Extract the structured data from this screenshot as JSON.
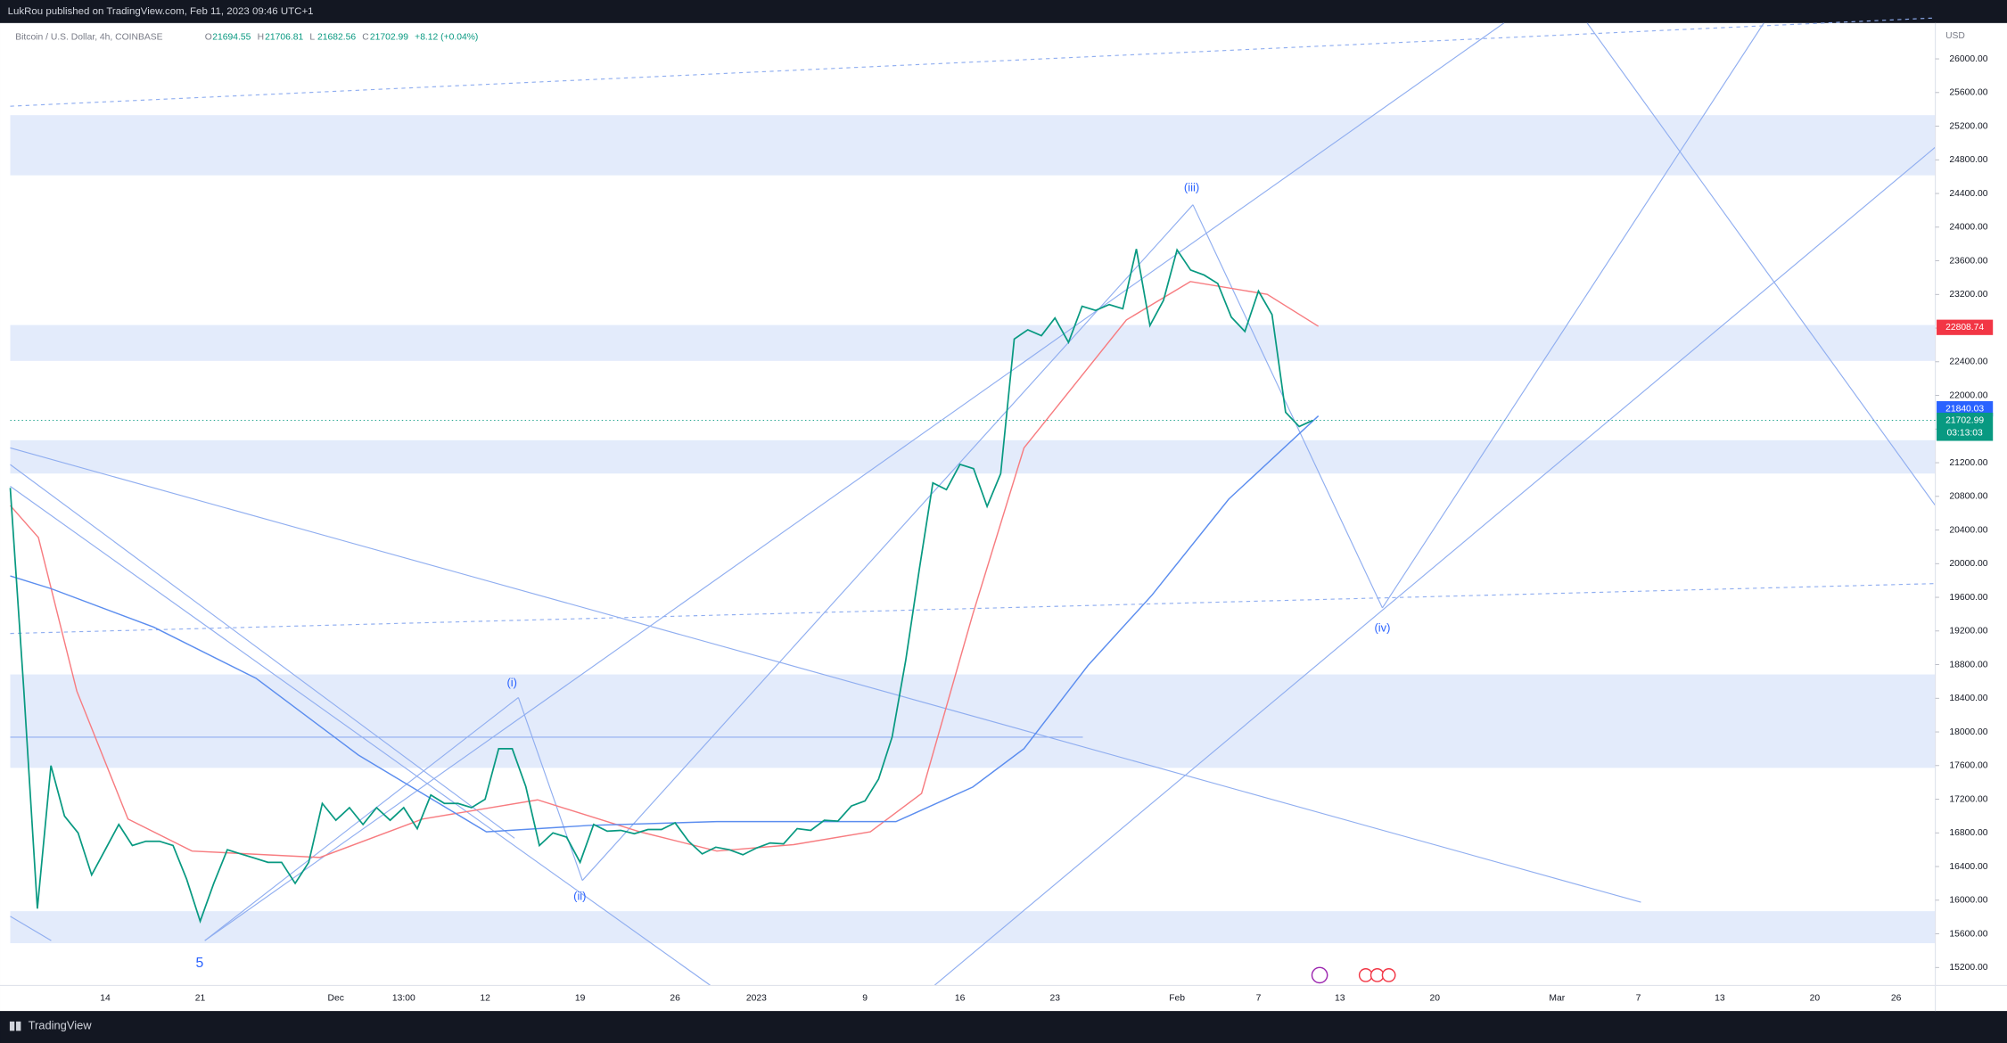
{
  "header": {
    "publisher": "LukRou published on TradingView.com, Feb 11, 2023 09:46 UTC+1",
    "footer": "TradingView"
  },
  "chart_data": {
    "type": "line",
    "symbol": "Bitcoin / U.S. Dollar, 4h, COINBASE",
    "ohlc": [
      {
        "label": "O",
        "value": 21694.55
      },
      {
        "label": "H",
        "value": 21706.81
      },
      {
        "label": "L",
        "value": 21682.56
      },
      {
        "label": "C",
        "value": 21702.99
      }
    ],
    "change": "+8.12 (+0.04%)",
    "currency": "USD",
    "categories": [
      null,
      null,
      null,
      null,
      null,
      null,
      null,
      "14",
      null,
      null,
      null,
      null,
      null,
      null,
      "21",
      null,
      null,
      null,
      null,
      null,
      null,
      null,
      null,
      null,
      "Dec",
      null,
      null,
      null,
      null,
      "13:00",
      null,
      null,
      null,
      null,
      null,
      "12",
      null,
      null,
      null,
      null,
      null,
      null,
      "19",
      null,
      null,
      null,
      null,
      null,
      null,
      "26",
      null,
      null,
      null,
      null,
      null,
      "2023",
      null,
      null,
      null,
      null,
      null,
      null,
      null,
      "9",
      null,
      null,
      null,
      null,
      null,
      null,
      "16",
      null,
      null,
      null,
      null,
      null,
      null,
      "23",
      null,
      null,
      null,
      null,
      null,
      null,
      null,
      null,
      "Feb",
      null,
      null,
      null,
      null,
      null,
      "7",
      null,
      null,
      null,
      null,
      null,
      "13",
      null,
      null,
      null,
      null,
      null,
      null,
      "20",
      null,
      null,
      null,
      null,
      null,
      null,
      null,
      null,
      "Mar",
      null,
      null,
      null,
      null,
      null,
      "7",
      null,
      null,
      null,
      null,
      null,
      "13",
      null,
      null,
      null,
      null,
      null,
      null,
      "20",
      null,
      null,
      null,
      null,
      null,
      "26",
      null,
      null
    ],
    "series": [
      {
        "name": "BTCUSD",
        "color": "#089981",
        "values": [
          20900,
          18500,
          15900,
          17600,
          17000,
          16800,
          16300,
          16600,
          16900,
          16650,
          16700,
          16700,
          16650,
          16250,
          15750,
          16200,
          16600,
          16550,
          16500,
          16450,
          16450,
          16200,
          16450,
          17150,
          16950,
          17100,
          16900,
          17100,
          16950,
          17100,
          16850,
          17250,
          17150,
          17150,
          17100,
          17200,
          17800,
          17800,
          17350,
          16650,
          16800,
          16750,
          16450,
          16900,
          16820,
          16830,
          16790,
          16840,
          16840,
          16920,
          16700,
          16550,
          16630,
          16600,
          16540,
          16620,
          16680,
          16670,
          16850,
          16830,
          16950,
          16940,
          17120,
          17180,
          17440,
          17940,
          18850,
          19930,
          20960,
          20880,
          21180,
          21130,
          20680,
          21070,
          22670,
          22780,
          22710,
          22920,
          22630,
          23060,
          23010,
          23080,
          23030,
          23740,
          22830,
          23130,
          23730,
          23490,
          23430,
          23330,
          22930,
          22760,
          23240,
          22960,
          21800,
          21630,
          21703,
          null,
          null,
          null,
          null,
          null,
          null,
          null,
          null,
          null,
          null,
          null,
          null,
          null,
          null,
          null,
          null,
          null,
          null,
          null,
          null,
          null,
          null,
          null,
          null,
          null,
          null,
          null,
          null,
          null,
          null,
          null,
          null,
          null,
          null,
          null,
          null,
          null,
          null,
          null,
          null,
          null,
          null,
          null,
          null,
          null
        ]
      }
    ],
    "ylim": [
      14987,
      26426
    ],
    "yticks": [
      {
        "value": 15200,
        "label": "15200.00"
      },
      {
        "value": 15600,
        "label": "15600.00"
      },
      {
        "value": 16000,
        "label": "16000.00"
      },
      {
        "value": 16400,
        "label": "16400.00"
      },
      {
        "value": 16800,
        "label": "16800.00"
      },
      {
        "value": 17200,
        "label": "17200.00"
      },
      {
        "value": 17600,
        "label": "17600.00"
      },
      {
        "value": 18000,
        "label": "18000.00"
      },
      {
        "value": 18400,
        "label": "18400.00"
      },
      {
        "value": 18800,
        "label": "18800.00"
      },
      {
        "value": 19200,
        "label": "19200.00"
      },
      {
        "value": 19600,
        "label": "19600.00"
      },
      {
        "value": 20000,
        "label": "20000.00"
      },
      {
        "value": 20400,
        "label": "20400.00"
      },
      {
        "value": 20800,
        "label": "20800.00"
      },
      {
        "value": 21200,
        "label": "21200.00"
      },
      {
        "value": 21600,
        "label": "21600.00"
      },
      {
        "value": 22000,
        "label": "22000.00"
      },
      {
        "value": 22400,
        "label": "22400.00"
      },
      {
        "value": 22800,
        "label": "22800.00"
      },
      {
        "value": 23200,
        "label": "23200.00"
      },
      {
        "value": 23600,
        "label": "23600.00"
      },
      {
        "value": 24000,
        "label": "24000.00"
      },
      {
        "value": 24400,
        "label": "24400.00"
      },
      {
        "value": 24800,
        "label": "24800.00"
      },
      {
        "value": 25200,
        "label": "25200.00"
      },
      {
        "value": 25600,
        "label": "25600.00"
      },
      {
        "value": 26000,
        "label": "26000.00"
      }
    ],
    "price_tags": [
      {
        "value": 22808.74,
        "label": "22808.74",
        "color": "#f23645"
      },
      {
        "value": 21840.03,
        "label": "21840.03",
        "color": "#2962ff"
      },
      {
        "value": 21702.99,
        "label": "21702.99",
        "color": "#089981",
        "countdown": "03:13:03"
      }
    ],
    "annotations": [
      "(iii)",
      "(i)",
      "(ii)",
      "(iv)",
      "5"
    ],
    "grid": false
  }
}
